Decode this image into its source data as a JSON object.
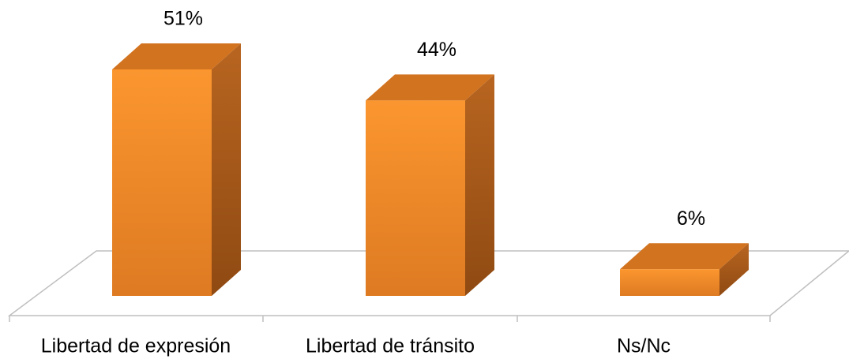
{
  "chart_data": {
    "type": "bar3d",
    "categories": [
      "Libertad de expresión",
      "Libertad de tránsito",
      "Ns/Nc"
    ],
    "values": [
      51,
      44,
      6
    ],
    "value_labels": [
      "51%",
      "44%",
      "6%"
    ],
    "color": "#f7922e"
  }
}
